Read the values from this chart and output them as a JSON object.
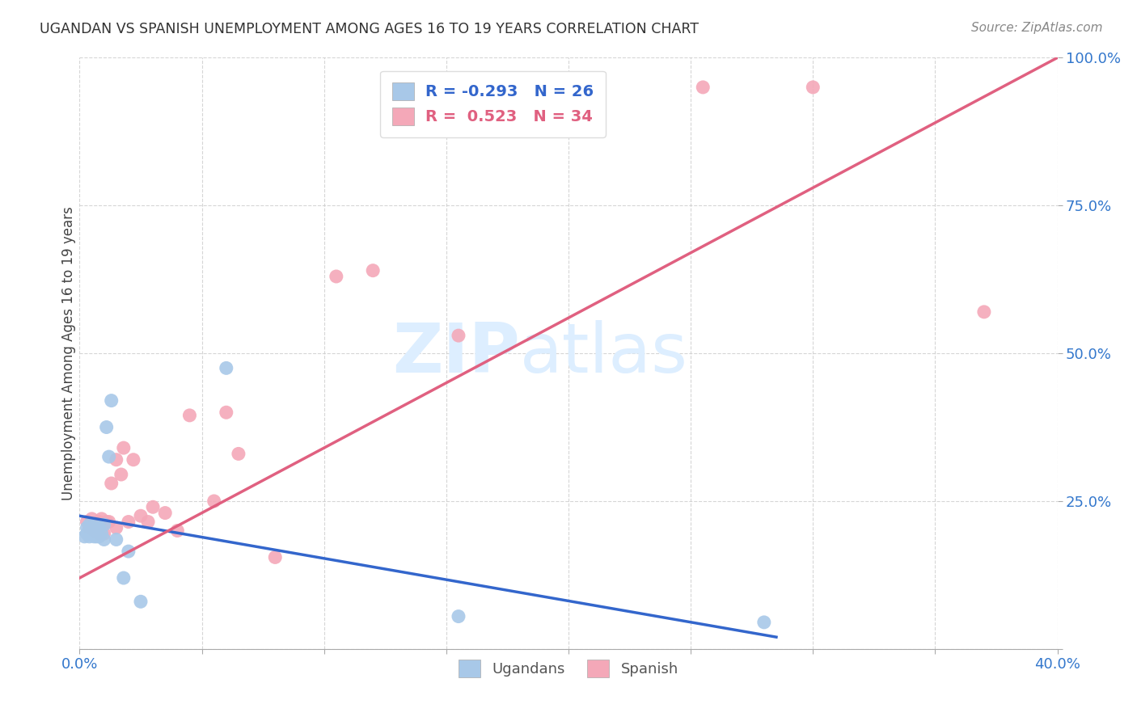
{
  "title": "UGANDAN VS SPANISH UNEMPLOYMENT AMONG AGES 16 TO 19 YEARS CORRELATION CHART",
  "source": "Source: ZipAtlas.com",
  "ylabel": "Unemployment Among Ages 16 to 19 years",
  "xlim": [
    0.0,
    0.4
  ],
  "ylim": [
    0.0,
    1.0
  ],
  "xticks": [
    0.0,
    0.05,
    0.1,
    0.15,
    0.2,
    0.25,
    0.3,
    0.35,
    0.4
  ],
  "yticks": [
    0.0,
    0.25,
    0.5,
    0.75,
    1.0
  ],
  "ugandan_color": "#a8c8e8",
  "spanish_color": "#f4a8b8",
  "ugandan_line_color": "#3366cc",
  "spanish_line_color": "#e06080",
  "background_color": "#ffffff",
  "legend_r_ugandan": "-0.293",
  "legend_n_ugandan": "26",
  "legend_r_spanish": "0.523",
  "legend_n_spanish": "34",
  "ugandan_points_x": [
    0.002,
    0.003,
    0.003,
    0.004,
    0.004,
    0.005,
    0.005,
    0.006,
    0.006,
    0.007,
    0.007,
    0.008,
    0.008,
    0.009,
    0.01,
    0.01,
    0.011,
    0.012,
    0.013,
    0.015,
    0.018,
    0.02,
    0.025,
    0.06,
    0.155,
    0.28
  ],
  "ugandan_points_y": [
    0.19,
    0.195,
    0.205,
    0.19,
    0.21,
    0.195,
    0.205,
    0.19,
    0.21,
    0.195,
    0.19,
    0.205,
    0.19,
    0.195,
    0.185,
    0.21,
    0.375,
    0.325,
    0.42,
    0.185,
    0.12,
    0.165,
    0.08,
    0.475,
    0.055,
    0.045
  ],
  "spanish_points_x": [
    0.003,
    0.004,
    0.005,
    0.006,
    0.007,
    0.008,
    0.008,
    0.009,
    0.01,
    0.011,
    0.012,
    0.013,
    0.015,
    0.015,
    0.017,
    0.018,
    0.02,
    0.022,
    0.025,
    0.028,
    0.03,
    0.035,
    0.04,
    0.045,
    0.055,
    0.06,
    0.065,
    0.08,
    0.105,
    0.12,
    0.155,
    0.255,
    0.3,
    0.37
  ],
  "spanish_points_y": [
    0.215,
    0.205,
    0.22,
    0.2,
    0.21,
    0.215,
    0.195,
    0.22,
    0.195,
    0.215,
    0.215,
    0.28,
    0.205,
    0.32,
    0.295,
    0.34,
    0.215,
    0.32,
    0.225,
    0.215,
    0.24,
    0.23,
    0.2,
    0.395,
    0.25,
    0.4,
    0.33,
    0.155,
    0.63,
    0.64,
    0.53,
    0.95,
    0.95,
    0.57
  ],
  "ugandan_line_x": [
    0.0,
    0.285
  ],
  "ugandan_line_y": [
    0.225,
    0.02
  ],
  "spanish_line_x": [
    0.0,
    0.4
  ],
  "spanish_line_y": [
    0.12,
    1.0
  ],
  "watermark_top": "ZIP",
  "watermark_bottom": "atlas",
  "watermark_color": "#ddeeff"
}
